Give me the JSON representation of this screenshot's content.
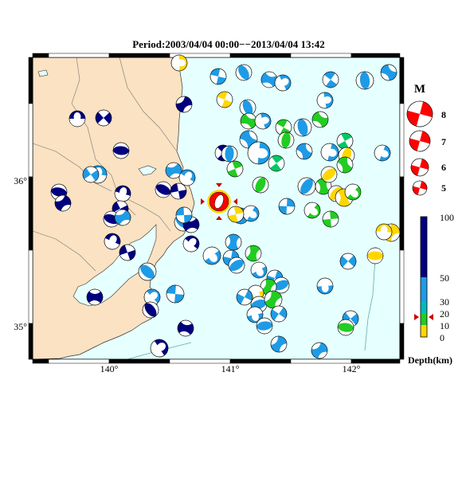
{
  "title": "Period:2003/04/04 00:00−−2013/04/04 13:42",
  "lon_ticks": [
    "140°",
    "141°",
    "142°"
  ],
  "lat_ticks": [
    "36°",
    "35°"
  ],
  "magnitude_legend": {
    "heading": "M",
    "labels": [
      "8",
      "7",
      "6",
      "5"
    ]
  },
  "depth_legend": {
    "ticks": [
      "100",
      "50",
      "30",
      "20",
      "10",
      "0"
    ],
    "axis_label": "Depth(km)",
    "marked_depth_km": 17
  },
  "depth_colors": {
    "0-10": "#ffd700",
    "10-20": "#00c864",
    "20-30": "#22cc22",
    "30-50": "#00bbbb",
    "50-100": "#00007f",
    "mid": "#1e9be6"
  },
  "colors": {
    "land": "#fae2c2",
    "sea": "#e6ffff",
    "highlight": "#ff0000"
  }
}
